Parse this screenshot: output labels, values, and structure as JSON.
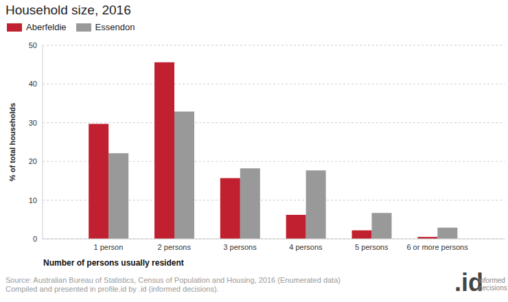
{
  "chart_data": {
    "type": "bar",
    "title": "Household size, 2016",
    "x_label": "Number of persons usually resident",
    "y_label": "% of total households",
    "categories": [
      "1 person",
      "2 persons",
      "3 persons",
      "4 persons",
      "5 persons",
      "6 or more persons"
    ],
    "series": [
      {
        "name": "Aberfeldie",
        "color": "#c0202f",
        "values": [
          29.7,
          45.6,
          15.7,
          6.2,
          2.2,
          0.5
        ]
      },
      {
        "name": "Essendon",
        "color": "#999999",
        "values": [
          22.1,
          32.9,
          18.2,
          17.7,
          6.7,
          2.9
        ]
      }
    ],
    "ylim": [
      0,
      50
    ],
    "yticks": [
      0,
      10,
      20,
      30,
      40,
      50
    ],
    "grid": true,
    "legend": "top-left",
    "annotations": [
      "Source: Australian Bureau of Statistics, Census of Population and Housing, 2016 (Enumerated data)",
      "Compiled and presented in profile.id by .id (informed decisions).",
      ".id",
      "informed decisions"
    ]
  }
}
